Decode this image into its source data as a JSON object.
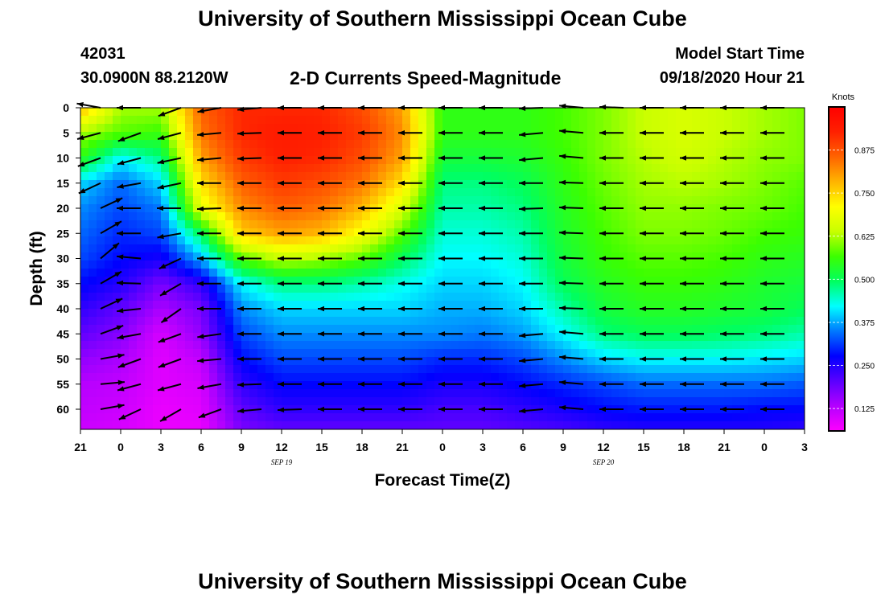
{
  "header": {
    "title": "University of Southern Mississippi Ocean Cube",
    "station_id": "42031",
    "station_coords": "30.0900N 88.2120W",
    "subtitle": "2-D Currents Speed-Magnitude",
    "model_start_label": "Model Start Time",
    "model_start_value": "09/18/2020 Hour 21"
  },
  "footer": {
    "title": "University of Southern Mississippi Ocean Cube"
  },
  "chart_data": {
    "type": "heatmap",
    "xlabel": "Forecast Time(Z)",
    "ylabel": "Depth (ft)",
    "x_ticks": [
      "21",
      "0",
      "3",
      "6",
      "9",
      "12",
      "15",
      "18",
      "21",
      "0",
      "3",
      "6",
      "9",
      "12",
      "15",
      "18",
      "21",
      "0",
      "3"
    ],
    "date_labels": [
      {
        "label": "SEP 19",
        "tick_index": 5
      },
      {
        "label": "SEP 20",
        "tick_index": 13
      }
    ],
    "ylim": [
      0,
      64
    ],
    "y_ticks": [
      0,
      5,
      10,
      15,
      20,
      25,
      30,
      35,
      40,
      45,
      50,
      55,
      60
    ],
    "y_reversed": true,
    "colorbar": {
      "label": "Knots",
      "range": [
        0.06,
        1.0
      ],
      "ticks": [
        "0.125",
        "0.250",
        "0.375",
        "0.500",
        "0.625",
        "0.750",
        "0.875"
      ],
      "colors": [
        "#ff00ff",
        "#b400ff",
        "#5a00ff",
        "#0000ff",
        "#0078ff",
        "#00ffff",
        "#00ff60",
        "#3cff00",
        "#c8ff00",
        "#ffff00",
        "#ffb400",
        "#ff6400",
        "#ff2000",
        "#ff0000"
      ]
    },
    "speed_grid": {
      "depths_ft": [
        0,
        5,
        10,
        15,
        20,
        25,
        30,
        35,
        40,
        45,
        50,
        55,
        60,
        64
      ],
      "time_hours": [
        0,
        3,
        6,
        9,
        12,
        15,
        18,
        21,
        24,
        27,
        30,
        33,
        36,
        39,
        42,
        45,
        48,
        51,
        54
      ],
      "values": [
        [
          0.78,
          0.62,
          0.62,
          0.86,
          0.92,
          0.92,
          0.92,
          0.88,
          0.8,
          0.55,
          0.55,
          0.55,
          0.57,
          0.6,
          0.64,
          0.66,
          0.64,
          0.62,
          0.6
        ],
        [
          0.62,
          0.58,
          0.56,
          0.84,
          0.92,
          0.94,
          0.93,
          0.9,
          0.82,
          0.55,
          0.55,
          0.55,
          0.57,
          0.6,
          0.64,
          0.66,
          0.64,
          0.62,
          0.6
        ],
        [
          0.55,
          0.42,
          0.48,
          0.8,
          0.9,
          0.93,
          0.92,
          0.88,
          0.8,
          0.52,
          0.52,
          0.53,
          0.56,
          0.6,
          0.63,
          0.65,
          0.63,
          0.61,
          0.6
        ],
        [
          0.4,
          0.34,
          0.4,
          0.74,
          0.86,
          0.9,
          0.88,
          0.84,
          0.74,
          0.48,
          0.48,
          0.5,
          0.55,
          0.59,
          0.62,
          0.63,
          0.62,
          0.6,
          0.58
        ],
        [
          0.36,
          0.32,
          0.35,
          0.68,
          0.82,
          0.86,
          0.84,
          0.78,
          0.66,
          0.46,
          0.46,
          0.48,
          0.54,
          0.58,
          0.61,
          0.61,
          0.6,
          0.59,
          0.57
        ],
        [
          0.34,
          0.3,
          0.32,
          0.5,
          0.76,
          0.8,
          0.78,
          0.7,
          0.58,
          0.44,
          0.44,
          0.46,
          0.53,
          0.57,
          0.6,
          0.6,
          0.59,
          0.57,
          0.56
        ],
        [
          0.32,
          0.28,
          0.26,
          0.38,
          0.58,
          0.64,
          0.62,
          0.58,
          0.5,
          0.42,
          0.42,
          0.44,
          0.52,
          0.56,
          0.58,
          0.58,
          0.57,
          0.55,
          0.54
        ],
        [
          0.28,
          0.25,
          0.18,
          0.24,
          0.42,
          0.48,
          0.48,
          0.46,
          0.43,
          0.4,
          0.4,
          0.42,
          0.5,
          0.54,
          0.56,
          0.56,
          0.55,
          0.53,
          0.52
        ],
        [
          0.24,
          0.2,
          0.14,
          0.18,
          0.36,
          0.4,
          0.4,
          0.4,
          0.4,
          0.38,
          0.38,
          0.4,
          0.46,
          0.52,
          0.54,
          0.54,
          0.53,
          0.52,
          0.5
        ],
        [
          0.2,
          0.17,
          0.1,
          0.16,
          0.32,
          0.36,
          0.36,
          0.36,
          0.36,
          0.36,
          0.35,
          0.37,
          0.42,
          0.48,
          0.5,
          0.5,
          0.49,
          0.48,
          0.46
        ],
        [
          0.16,
          0.14,
          0.09,
          0.12,
          0.28,
          0.32,
          0.32,
          0.32,
          0.32,
          0.3,
          0.3,
          0.32,
          0.36,
          0.4,
          0.42,
          0.42,
          0.42,
          0.41,
          0.4
        ],
        [
          0.13,
          0.12,
          0.09,
          0.1,
          0.24,
          0.28,
          0.28,
          0.28,
          0.28,
          0.26,
          0.26,
          0.28,
          0.3,
          0.32,
          0.34,
          0.34,
          0.34,
          0.34,
          0.33
        ],
        [
          0.12,
          0.11,
          0.08,
          0.09,
          0.2,
          0.24,
          0.24,
          0.24,
          0.24,
          0.22,
          0.22,
          0.24,
          0.26,
          0.28,
          0.29,
          0.29,
          0.29,
          0.28,
          0.28
        ],
        [
          0.11,
          0.1,
          0.08,
          0.08,
          0.18,
          0.2,
          0.2,
          0.2,
          0.2,
          0.2,
          0.2,
          0.21,
          0.22,
          0.24,
          0.25,
          0.25,
          0.25,
          0.25,
          0.24
        ]
      ]
    },
    "vectors": {
      "time_hours": [
        0,
        3,
        6,
        9,
        12,
        15,
        18,
        21,
        24,
        27,
        30,
        33,
        36,
        39,
        42,
        45,
        48,
        51
      ],
      "depths_ft": [
        0,
        5,
        10,
        15,
        20,
        25,
        30,
        35,
        40,
        45,
        50,
        55,
        60
      ],
      "angles_deg": [
        [
          170,
          180,
          200,
          190,
          185,
          180,
          180,
          180,
          180,
          180,
          180,
          182,
          175,
          178,
          180,
          180,
          180,
          180
        ],
        [
          195,
          200,
          195,
          185,
          182,
          180,
          180,
          180,
          180,
          180,
          180,
          185,
          175,
          180,
          180,
          180,
          180,
          180
        ],
        [
          200,
          195,
          192,
          185,
          182,
          180,
          180,
          180,
          180,
          180,
          180,
          185,
          175,
          180,
          180,
          180,
          180,
          180
        ],
        [
          205,
          190,
          192,
          180,
          180,
          180,
          180,
          180,
          180,
          180,
          180,
          180,
          178,
          180,
          180,
          180,
          180,
          180
        ],
        [
          25,
          180,
          180,
          182,
          180,
          180,
          180,
          180,
          180,
          180,
          180,
          182,
          178,
          180,
          180,
          180,
          180,
          180
        ],
        [
          30,
          180,
          190,
          180,
          180,
          180,
          180,
          180,
          180,
          180,
          180,
          180,
          178,
          180,
          180,
          180,
          180,
          180
        ],
        [
          40,
          175,
          205,
          180,
          180,
          180,
          180,
          180,
          180,
          180,
          180,
          180,
          178,
          180,
          180,
          180,
          180,
          180
        ],
        [
          30,
          178,
          210,
          180,
          180,
          180,
          180,
          180,
          180,
          180,
          180,
          180,
          178,
          180,
          180,
          180,
          180,
          180
        ],
        [
          25,
          186,
          215,
          180,
          180,
          180,
          180,
          180,
          180,
          180,
          180,
          180,
          178,
          180,
          180,
          180,
          180,
          180
        ],
        [
          20,
          190,
          200,
          188,
          180,
          180,
          180,
          180,
          180,
          180,
          180,
          185,
          175,
          180,
          180,
          180,
          180,
          180
        ],
        [
          10,
          200,
          200,
          185,
          180,
          180,
          180,
          180,
          180,
          180,
          180,
          185,
          175,
          180,
          180,
          180,
          180,
          180
        ],
        [
          5,
          195,
          195,
          190,
          182,
          180,
          180,
          180,
          180,
          180,
          180,
          185,
          175,
          180,
          180,
          180,
          180,
          180
        ],
        [
          10,
          205,
          210,
          200,
          185,
          182,
          180,
          180,
          180,
          180,
          180,
          185,
          175,
          180,
          180,
          180,
          180,
          180
        ]
      ]
    }
  }
}
